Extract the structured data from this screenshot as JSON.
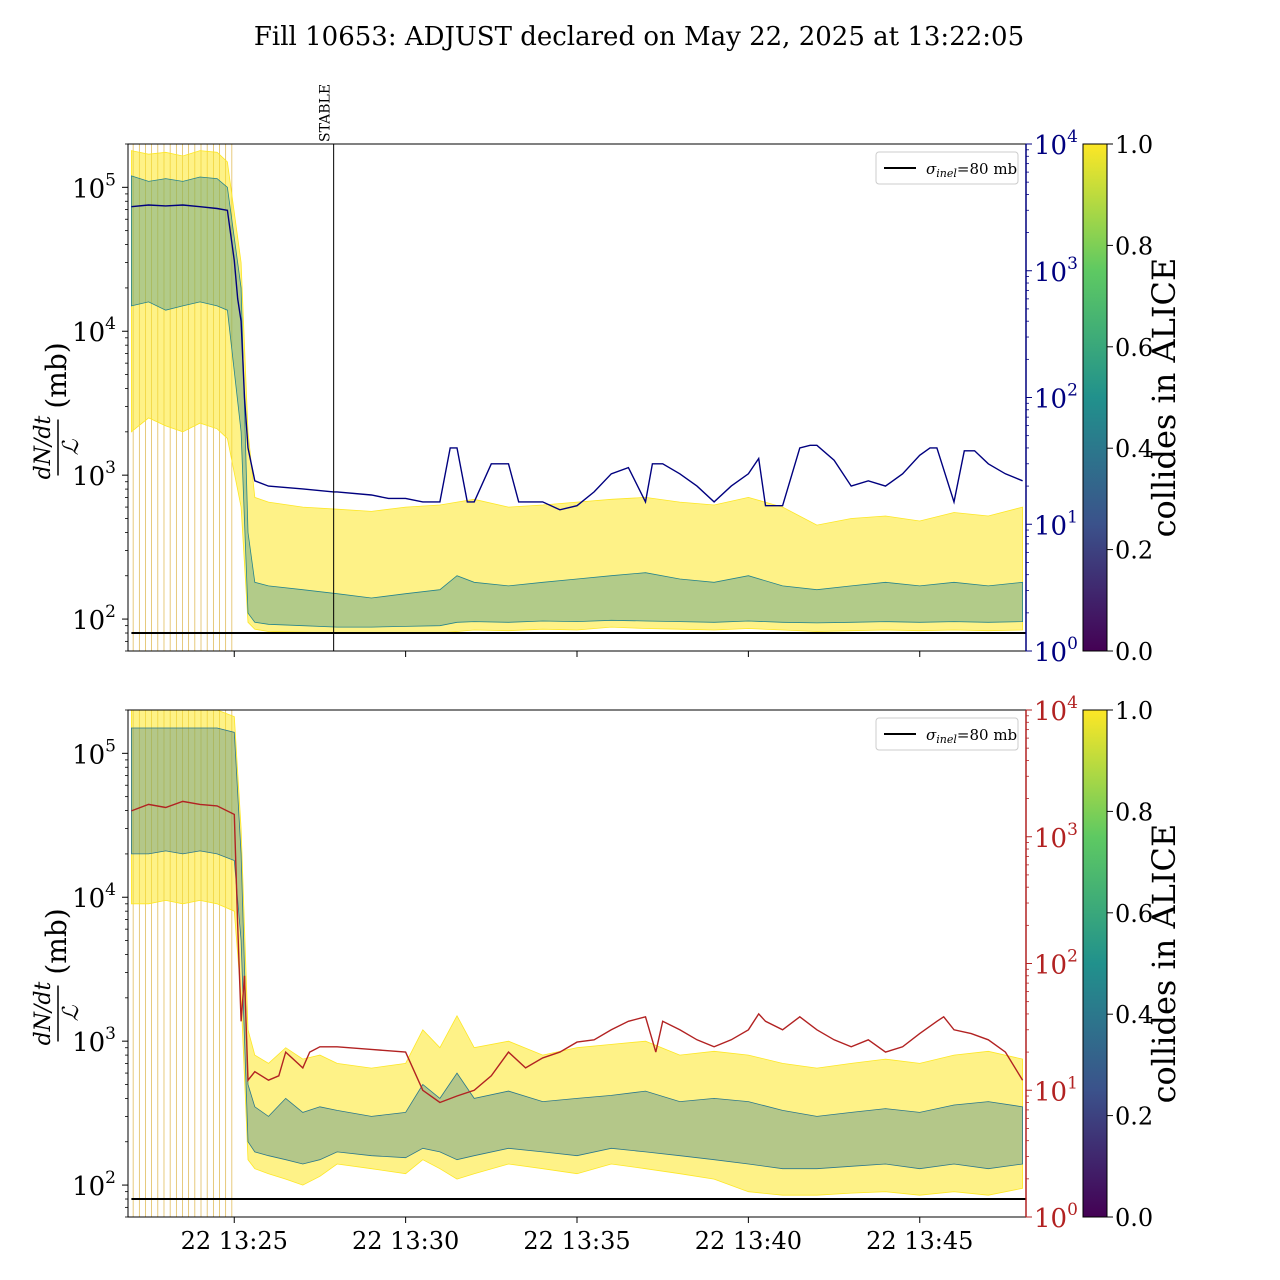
{
  "figure": {
    "title": "Fill 10653: ADJUST declared on May 22, 2025 at 13:22:05"
  },
  "chart_data": [
    {
      "type": "line",
      "panel": "top",
      "ylabel_num": "dN/dt",
      "ylabel_den": "ℒ",
      "ylabel_unit": "(mb)",
      "yscale_left": "log",
      "ylim_left": [
        60,
        200000
      ],
      "yticks_left": [
        {
          "base": "10",
          "exp": "2",
          "value": 100
        },
        {
          "base": "10",
          "exp": "3",
          "value": 1000
        },
        {
          "base": "10",
          "exp": "4",
          "value": 10000
        },
        {
          "base": "10",
          "exp": "5",
          "value": 100000
        }
      ],
      "yscale_right": "log",
      "ylim_right": [
        1,
        10000
      ],
      "right_axis_color": "#00007f",
      "yticks_right": [
        {
          "base": "10",
          "exp": "0",
          "value": 1
        },
        {
          "base": "10",
          "exp": "1",
          "value": 10
        },
        {
          "base": "10",
          "exp": "2",
          "value": 100
        },
        {
          "base": "10",
          "exp": "3",
          "value": 1000
        },
        {
          "base": "10",
          "exp": "4",
          "value": 10000
        }
      ],
      "xlim_minutes": [
        21.9,
        48.1
      ],
      "annotation": {
        "label": "STABLE",
        "x_minute": 27.9
      },
      "reference_line": {
        "value": 80,
        "legend_sym": "σ",
        "legend_sub": "inel",
        "legend_rest": "=80 mb"
      },
      "band_series": [
        {
          "name": "",
          "x": [
            22.0,
            22.5,
            23.0,
            23.5,
            24.0,
            24.5,
            24.8,
            25.2,
            25.4,
            25.6,
            26.0,
            27.0,
            28.0,
            29.0,
            30.0,
            31.0,
            31.5,
            32.0,
            33.0,
            34.0,
            35.0,
            36.0,
            37.0,
            38.0,
            39.0,
            40.0,
            41.0,
            42.0,
            43.0,
            44.0,
            45.0,
            46.0,
            47.0,
            48.0
          ],
          "upper": [
            180000,
            170000,
            175000,
            165000,
            180000,
            175000,
            150000,
            30000,
            2000,
            700,
            650,
            600,
            580,
            560,
            600,
            620,
            650,
            680,
            600,
            620,
            650,
            680,
            700,
            650,
            620,
            700,
            600,
            450,
            500,
            520,
            480,
            550,
            520,
            600
          ],
          "lower": [
            2000,
            2500,
            2200,
            2000,
            2300,
            2100,
            1800,
            600,
            95,
            85,
            82,
            81,
            80,
            80,
            80,
            80,
            82,
            84,
            83,
            85,
            84,
            88,
            86,
            85,
            84,
            86,
            84,
            82,
            83,
            84,
            83,
            84,
            83,
            84
          ],
          "colormap_value": 1.0
        },
        {
          "name": "",
          "x": [
            22.0,
            22.5,
            23.0,
            23.5,
            24.0,
            24.5,
            24.8,
            25.2,
            25.4,
            25.6,
            26.0,
            27.0,
            28.0,
            29.0,
            30.0,
            31.0,
            31.5,
            32.0,
            33.0,
            34.0,
            35.0,
            36.0,
            37.0,
            38.0,
            39.0,
            40.0,
            41.0,
            42.0,
            43.0,
            44.0,
            45.0,
            46.0,
            47.0,
            48.0
          ],
          "upper": [
            120000,
            110000,
            115000,
            110000,
            118000,
            115000,
            100000,
            20000,
            400,
            180,
            170,
            160,
            150,
            140,
            150,
            160,
            200,
            180,
            170,
            180,
            190,
            200,
            210,
            190,
            180,
            200,
            170,
            160,
            170,
            180,
            170,
            180,
            170,
            180
          ],
          "lower": [
            15000,
            16000,
            14000,
            15000,
            16000,
            15000,
            14000,
            2000,
            110,
            95,
            92,
            90,
            88,
            88,
            89,
            90,
            95,
            96,
            95,
            97,
            96,
            98,
            97,
            96,
            95,
            97,
            95,
            94,
            95,
            96,
            95,
            96,
            95,
            96
          ],
          "colormap_value": 0.45
        }
      ],
      "series": [
        {
          "name": "",
          "axis": "right",
          "color": "#00007f",
          "x": [
            22.0,
            22.5,
            23.0,
            23.5,
            24.0,
            24.5,
            24.8,
            25.0,
            25.1,
            25.2,
            25.3,
            25.4,
            25.6,
            26.0,
            27.0,
            27.9,
            28.0,
            29.0,
            29.5,
            30.0,
            30.5,
            31.0,
            31.3,
            31.5,
            31.8,
            32.0,
            32.5,
            33.0,
            33.3,
            33.5,
            34.0,
            34.5,
            35.0,
            35.5,
            36.0,
            36.5,
            37.0,
            37.2,
            37.5,
            38.0,
            38.5,
            39.0,
            39.5,
            40.0,
            40.3,
            40.5,
            41.0,
            41.5,
            41.8,
            42.0,
            42.5,
            43.0,
            43.5,
            44.0,
            44.5,
            45.0,
            45.3,
            45.5,
            46.0,
            46.3,
            46.6,
            47.0,
            47.5,
            48.0
          ],
          "y": [
            3200,
            3300,
            3250,
            3300,
            3200,
            3100,
            3000,
            1200,
            600,
            400,
            100,
            40,
            22,
            20,
            19,
            18,
            18,
            17,
            16,
            16,
            15,
            15,
            40,
            40,
            15,
            15,
            30,
            30,
            15,
            15,
            15,
            13,
            14,
            18,
            25,
            28,
            15,
            30,
            30,
            25,
            20,
            15,
            20,
            25,
            33,
            14,
            14,
            40,
            42,
            42,
            32,
            20,
            22,
            20,
            25,
            35,
            40,
            40,
            15,
            38,
            38,
            30,
            25,
            22
          ]
        },
        {
          "name": "",
          "axis": "left",
          "color": "#000000",
          "x": [
            22.0,
            48.1
          ],
          "y": [
            80,
            80
          ]
        }
      ],
      "colorbar": {
        "label": "collides in ALICE",
        "colormap": "viridis",
        "range": [
          0.0,
          1.0
        ],
        "ticks": [
          "0.0",
          "0.2",
          "0.4",
          "0.6",
          "0.8",
          "1.0"
        ]
      }
    },
    {
      "type": "line",
      "panel": "bottom",
      "ylabel_num": "dN/dt",
      "ylabel_den": "ℒ",
      "ylabel_unit": "(mb)",
      "yscale_left": "log",
      "ylim_left": [
        60,
        200000
      ],
      "yticks_left": [
        {
          "base": "10",
          "exp": "2",
          "value": 100
        },
        {
          "base": "10",
          "exp": "3",
          "value": 1000
        },
        {
          "base": "10",
          "exp": "4",
          "value": 10000
        },
        {
          "base": "10",
          "exp": "5",
          "value": 100000
        }
      ],
      "yscale_right": "log",
      "ylim_right": [
        1,
        10000
      ],
      "right_axis_color": "#b22222",
      "yticks_right": [
        {
          "base": "10",
          "exp": "0",
          "value": 1
        },
        {
          "base": "10",
          "exp": "1",
          "value": 10
        },
        {
          "base": "10",
          "exp": "2",
          "value": 100
        },
        {
          "base": "10",
          "exp": "3",
          "value": 1000
        },
        {
          "base": "10",
          "exp": "4",
          "value": 10000
        }
      ],
      "xlim_minutes": [
        21.9,
        48.1
      ],
      "xticks": [
        {
          "label": "22 13:25",
          "minute": 25
        },
        {
          "label": "22 13:30",
          "minute": 30
        },
        {
          "label": "22 13:35",
          "minute": 35
        },
        {
          "label": "22 13:40",
          "minute": 40
        },
        {
          "label": "22 13:45",
          "minute": 45
        }
      ],
      "reference_line": {
        "value": 80,
        "legend_sym": "σ",
        "legend_sub": "inel",
        "legend_rest": "=80 mb"
      },
      "band_series": [
        {
          "name": "",
          "x": [
            22.0,
            22.5,
            23.0,
            23.5,
            24.0,
            24.5,
            25.0,
            25.2,
            25.4,
            25.6,
            26.0,
            26.5,
            27.0,
            27.5,
            28.0,
            29.0,
            30.0,
            30.5,
            31.0,
            31.5,
            32.0,
            33.0,
            34.0,
            35.0,
            36.0,
            37.0,
            38.0,
            39.0,
            40.0,
            41.0,
            42.0,
            43.0,
            44.0,
            45.0,
            46.0,
            47.0,
            48.0
          ],
          "upper": [
            200000,
            200000,
            200000,
            200000,
            200000,
            200000,
            180000,
            30000,
            1200,
            800,
            700,
            900,
            750,
            800,
            700,
            650,
            700,
            1200,
            900,
            1500,
            900,
            1000,
            800,
            900,
            950,
            1000,
            800,
            850,
            800,
            700,
            650,
            700,
            750,
            700,
            800,
            850,
            750
          ],
          "lower": [
            9000,
            9000,
            9500,
            9000,
            9500,
            9000,
            8000,
            2000,
            150,
            130,
            120,
            110,
            100,
            115,
            140,
            130,
            120,
            150,
            130,
            110,
            120,
            140,
            130,
            120,
            140,
            130,
            120,
            110,
            90,
            85,
            85,
            88,
            90,
            85,
            90,
            85,
            95
          ],
          "colormap_value": 1.0
        },
        {
          "name": "",
          "x": [
            22.0,
            22.5,
            23.0,
            23.5,
            24.0,
            24.5,
            25.0,
            25.2,
            25.4,
            25.6,
            26.0,
            26.5,
            27.0,
            27.5,
            28.0,
            29.0,
            30.0,
            30.5,
            31.0,
            31.5,
            32.0,
            33.0,
            34.0,
            35.0,
            36.0,
            37.0,
            38.0,
            39.0,
            40.0,
            41.0,
            42.0,
            43.0,
            44.0,
            45.0,
            46.0,
            47.0,
            48.0
          ],
          "upper": [
            150000,
            150000,
            150000,
            150000,
            150000,
            150000,
            140000,
            20000,
            500,
            350,
            300,
            400,
            320,
            350,
            330,
            300,
            320,
            500,
            400,
            600,
            400,
            450,
            380,
            400,
            420,
            450,
            380,
            400,
            380,
            330,
            300,
            320,
            340,
            320,
            360,
            380,
            350
          ],
          "lower": [
            20000,
            20000,
            21000,
            20000,
            21000,
            20000,
            18000,
            5000,
            200,
            170,
            160,
            150,
            140,
            150,
            170,
            160,
            155,
            180,
            170,
            150,
            160,
            180,
            170,
            160,
            180,
            170,
            160,
            150,
            140,
            130,
            130,
            135,
            140,
            130,
            140,
            130,
            140
          ],
          "colormap_value": 0.4
        }
      ],
      "series": [
        {
          "name": "",
          "axis": "right",
          "color": "#b22222",
          "x": [
            22.0,
            22.5,
            23.0,
            23.5,
            24.0,
            24.5,
            25.0,
            25.1,
            25.2,
            25.3,
            25.4,
            25.6,
            26.0,
            26.3,
            26.5,
            27.0,
            27.2,
            27.5,
            28.0,
            29.0,
            30.0,
            30.5,
            31.0,
            31.5,
            32.0,
            32.5,
            33.0,
            33.5,
            34.0,
            34.5,
            35.0,
            35.5,
            36.0,
            36.5,
            37.0,
            37.3,
            37.5,
            38.0,
            38.5,
            39.0,
            39.5,
            40.0,
            40.3,
            40.5,
            41.0,
            41.5,
            42.0,
            42.5,
            43.0,
            43.5,
            44.0,
            44.5,
            45.0,
            45.5,
            45.7,
            46.0,
            46.5,
            47.0,
            47.5,
            48.0
          ],
          "y": [
            1600,
            1800,
            1700,
            1900,
            1800,
            1750,
            1500,
            200,
            35,
            80,
            12,
            14,
            12,
            13,
            20,
            15,
            20,
            22,
            22,
            21,
            20,
            10,
            8,
            9,
            10,
            13,
            20,
            15,
            18,
            20,
            24,
            25,
            30,
            35,
            38,
            20,
            35,
            30,
            25,
            22,
            25,
            30,
            40,
            35,
            30,
            38,
            30,
            25,
            22,
            25,
            20,
            22,
            28,
            35,
            38,
            30,
            28,
            25,
            20,
            12
          ]
        },
        {
          "name": "",
          "axis": "left",
          "color": "#000000",
          "x": [
            22.0,
            48.1
          ],
          "y": [
            80,
            80
          ]
        }
      ],
      "colorbar": {
        "label": "collides in ALICE",
        "colormap": "viridis",
        "range": [
          0.0,
          1.0
        ],
        "ticks": [
          "0.0",
          "0.2",
          "0.4",
          "0.6",
          "0.8",
          "1.0"
        ]
      }
    }
  ]
}
